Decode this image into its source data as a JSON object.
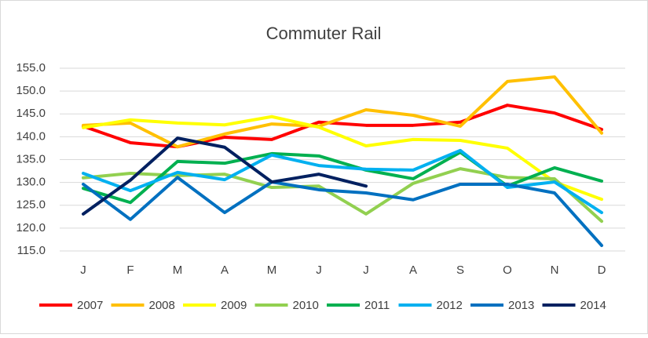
{
  "chart_data": {
    "type": "line",
    "title": "Commuter Rail",
    "categories": [
      "J",
      "F",
      "M",
      "A",
      "M",
      "J",
      "J",
      "A",
      "S",
      "O",
      "N",
      "D"
    ],
    "series": [
      {
        "name": "2007",
        "color": "#ff0000",
        "values": [
          142.3,
          138.7,
          137.8,
          139.9,
          139.4,
          143.2,
          142.5,
          142.5,
          143.2,
          146.9,
          145.2,
          141.6
        ]
      },
      {
        "name": "2008",
        "color": "#ffc000",
        "values": [
          142.5,
          143.0,
          137.8,
          140.6,
          142.8,
          142.3,
          145.9,
          144.7,
          142.3,
          152.1,
          153.1,
          140.8
        ]
      },
      {
        "name": "2009",
        "color": "#ffff00",
        "values": [
          142.0,
          143.7,
          143.0,
          142.6,
          144.4,
          142.1,
          138.0,
          139.4,
          139.2,
          137.5,
          130.1,
          126.3
        ]
      },
      {
        "name": "2010",
        "color": "#92d050",
        "values": [
          131.0,
          132.0,
          131.5,
          131.8,
          128.9,
          129.2,
          123.1,
          129.8,
          133.0,
          131.1,
          130.8,
          121.5
        ]
      },
      {
        "name": "2011",
        "color": "#00b050",
        "values": [
          128.7,
          125.6,
          134.6,
          134.2,
          136.3,
          135.8,
          132.7,
          130.8,
          136.6,
          129.2,
          133.2,
          130.3
        ]
      },
      {
        "name": "2012",
        "color": "#00b0f0",
        "values": [
          132.0,
          128.2,
          132.2,
          130.6,
          136.0,
          133.7,
          132.9,
          132.7,
          137.0,
          128.9,
          130.1,
          123.4
        ]
      },
      {
        "name": "2013",
        "color": "#0070c0",
        "values": [
          129.6,
          121.9,
          131.1,
          123.4,
          130.1,
          128.4,
          127.7,
          126.2,
          129.6,
          129.6,
          127.7,
          116.2
        ]
      },
      {
        "name": "2014",
        "color": "#002060",
        "values": [
          123.1,
          130.5,
          139.7,
          137.7,
          130.1,
          131.8,
          129.2,
          null,
          null,
          null,
          null,
          null
        ]
      }
    ],
    "ylim": [
      115,
      155
    ],
    "yticks": [
      {
        "value": 115,
        "label": "115.0"
      },
      {
        "value": 120,
        "label": "120.0"
      },
      {
        "value": 125,
        "label": "125.0"
      },
      {
        "value": 130,
        "label": "130.0"
      },
      {
        "value": 135,
        "label": "135.0"
      },
      {
        "value": 140,
        "label": "140.0"
      },
      {
        "value": 145,
        "label": "145.0"
      },
      {
        "value": 150,
        "label": "150.0"
      },
      {
        "value": 155,
        "label": "155.0"
      }
    ],
    "grid": true,
    "legend": "bottom"
  }
}
